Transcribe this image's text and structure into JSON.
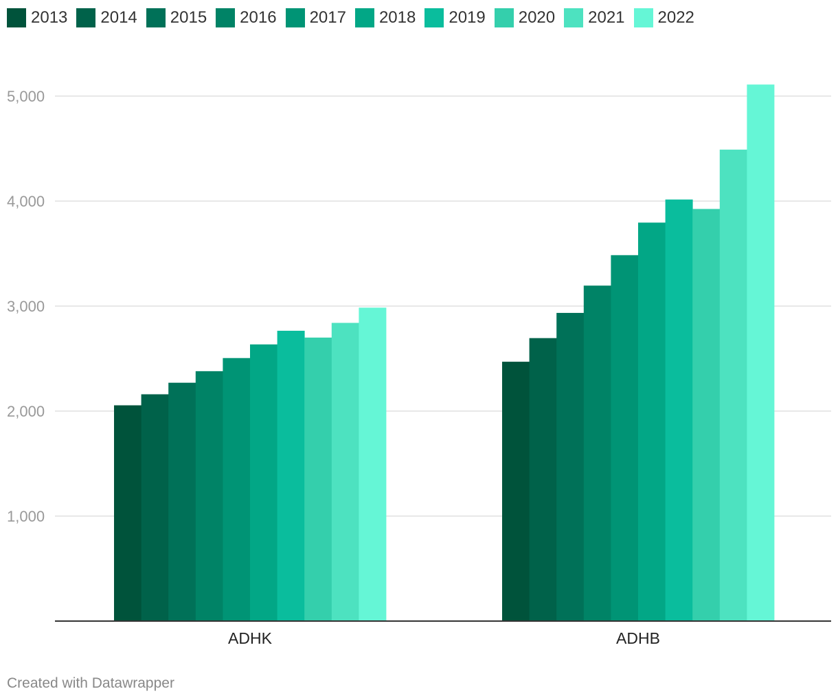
{
  "chart_data": {
    "type": "bar",
    "categories": [
      "ADHK",
      "ADHB"
    ],
    "series": [
      {
        "name": "2013",
        "color": "#00533b",
        "values": [
          2055,
          2470
        ]
      },
      {
        "name": "2014",
        "color": "#00624a",
        "values": [
          2160,
          2695
        ]
      },
      {
        "name": "2015",
        "color": "#007158",
        "values": [
          2270,
          2935
        ]
      },
      {
        "name": "2016",
        "color": "#008366",
        "values": [
          2380,
          3195
        ]
      },
      {
        "name": "2017",
        "color": "#009475",
        "values": [
          2505,
          3485
        ]
      },
      {
        "name": "2018",
        "color": "#02a786",
        "values": [
          2635,
          3795
        ]
      },
      {
        "name": "2019",
        "color": "#0abd9d",
        "values": [
          2765,
          4015
        ]
      },
      {
        "name": "2020",
        "color": "#34cfac",
        "values": [
          2700,
          3925
        ]
      },
      {
        "name": "2021",
        "color": "#4de2c0",
        "values": [
          2840,
          4490
        ]
      },
      {
        "name": "2022",
        "color": "#65f6d6",
        "values": [
          2985,
          5110
        ]
      }
    ],
    "y_ticks": [
      "1,000",
      "2,000",
      "3,000",
      "4,000",
      "5,000"
    ],
    "y_tick_values": [
      1000,
      2000,
      3000,
      4000,
      5000
    ],
    "ylim": [
      0,
      5200
    ],
    "grid": true,
    "legend_position": "top-left"
  },
  "footer": "Created with Datawrapper"
}
